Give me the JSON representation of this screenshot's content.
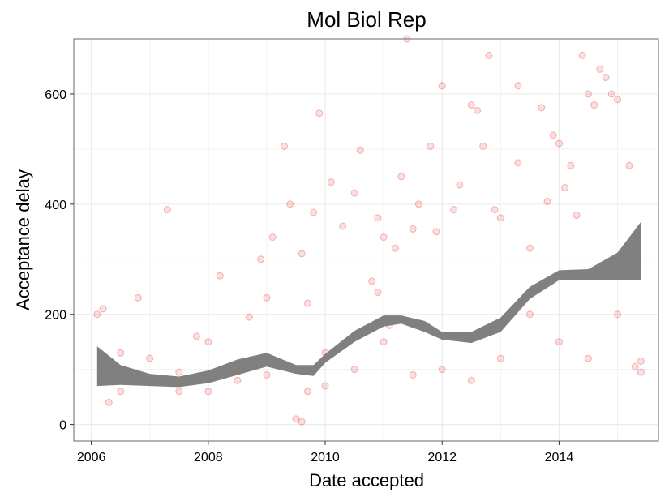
{
  "chart_data": {
    "type": "scatter",
    "title": "Mol Biol Rep",
    "xlabel": "Date accepted",
    "ylabel": "Acceptance delay",
    "xlim": [
      2005.7,
      2015.7
    ],
    "ylim": [
      -30,
      700
    ],
    "x_ticks": [
      2006,
      2008,
      2010,
      2012,
      2014
    ],
    "x_tick_labels": [
      "2006",
      "2008",
      "2010",
      "2012",
      "2014"
    ],
    "y_ticks": [
      0,
      200,
      400,
      600
    ],
    "y_tick_labels": [
      "0",
      "200",
      "400",
      "600"
    ],
    "grid": true,
    "legend": "none",
    "colors": {
      "points": "#e31a1c",
      "smooth_band": "#808080"
    },
    "point_alpha": 0.15,
    "series": [
      {
        "type": "scatter",
        "points": [
          [
            2006.1,
            200
          ],
          [
            2006.2,
            210
          ],
          [
            2006.3,
            40
          ],
          [
            2006.5,
            60
          ],
          [
            2006.8,
            230
          ],
          [
            2007.0,
            120
          ],
          [
            2007.3,
            390
          ],
          [
            2007.5,
            95
          ],
          [
            2007.8,
            160
          ],
          [
            2008.0,
            150
          ],
          [
            2008.2,
            270
          ],
          [
            2008.5,
            110
          ],
          [
            2008.7,
            195
          ],
          [
            2008.9,
            300
          ],
          [
            2009.0,
            230
          ],
          [
            2009.1,
            340
          ],
          [
            2009.3,
            505
          ],
          [
            2009.4,
            400
          ],
          [
            2009.6,
            310
          ],
          [
            2009.7,
            220
          ],
          [
            2009.8,
            385
          ],
          [
            2009.9,
            565
          ],
          [
            2010.0,
            130
          ],
          [
            2010.1,
            440
          ],
          [
            2010.3,
            360
          ],
          [
            2010.5,
            420
          ],
          [
            2010.6,
            498
          ],
          [
            2010.8,
            260
          ],
          [
            2010.9,
            375
          ],
          [
            2011.0,
            340
          ],
          [
            2011.2,
            320
          ],
          [
            2011.3,
            450
          ],
          [
            2011.4,
            700
          ],
          [
            2011.5,
            355
          ],
          [
            2011.6,
            400
          ],
          [
            2011.8,
            505
          ],
          [
            2011.9,
            350
          ],
          [
            2012.0,
            615
          ],
          [
            2012.2,
            390
          ],
          [
            2012.3,
            435
          ],
          [
            2012.5,
            580
          ],
          [
            2012.6,
            570
          ],
          [
            2012.7,
            505
          ],
          [
            2012.8,
            670
          ],
          [
            2012.9,
            390
          ],
          [
            2013.0,
            375
          ],
          [
            2013.3,
            615
          ],
          [
            2013.3,
            475
          ],
          [
            2013.5,
            320
          ],
          [
            2013.7,
            575
          ],
          [
            2013.8,
            405
          ],
          [
            2013.9,
            525
          ],
          [
            2014.0,
            510
          ],
          [
            2014.1,
            430
          ],
          [
            2014.2,
            470
          ],
          [
            2014.4,
            670
          ],
          [
            2014.5,
            600
          ],
          [
            2014.6,
            580
          ],
          [
            2014.7,
            645
          ],
          [
            2014.8,
            630
          ],
          [
            2014.9,
            600
          ],
          [
            2015.0,
            590
          ],
          [
            2015.2,
            470
          ],
          [
            2015.3,
            105
          ],
          [
            2015.4,
            115
          ],
          [
            2015.4,
            95
          ],
          [
            2006.5,
            130
          ],
          [
            2007.0,
            80
          ],
          [
            2007.5,
            60
          ],
          [
            2008.0,
            60
          ],
          [
            2008.5,
            80
          ],
          [
            2009.0,
            90
          ],
          [
            2009.5,
            10
          ],
          [
            2009.6,
            5
          ],
          [
            2009.7,
            60
          ],
          [
            2010.0,
            70
          ],
          [
            2010.5,
            100
          ],
          [
            2011.0,
            150
          ],
          [
            2011.5,
            90
          ],
          [
            2012.0,
            100
          ],
          [
            2012.5,
            80
          ],
          [
            2013.0,
            120
          ],
          [
            2013.5,
            200
          ],
          [
            2014.0,
            150
          ],
          [
            2014.5,
            120
          ],
          [
            2015.0,
            200
          ],
          [
            2010.9,
            240
          ],
          [
            2011.1,
            180
          ],
          [
            2013.7,
            250
          ],
          [
            2014.3,
            380
          ]
        ]
      },
      {
        "type": "smooth",
        "x": [
          2006.1,
          2006.5,
          2007.0,
          2007.5,
          2008.0,
          2008.5,
          2009.0,
          2009.5,
          2009.8,
          2010.0,
          2010.5,
          2011.0,
          2011.3,
          2011.7,
          2012.0,
          2012.5,
          2013.0,
          2013.5,
          2014.0,
          2014.5,
          2015.0,
          2015.4
        ],
        "lower": [
          70,
          72,
          70,
          68,
          75,
          90,
          105,
          92,
          88,
          112,
          150,
          178,
          183,
          168,
          154,
          148,
          168,
          228,
          262,
          262,
          262,
          262
        ],
        "upper": [
          142,
          108,
          92,
          87,
          98,
          118,
          130,
          108,
          108,
          128,
          170,
          198,
          198,
          188,
          168,
          168,
          194,
          250,
          280,
          282,
          312,
          368
        ]
      }
    ]
  }
}
